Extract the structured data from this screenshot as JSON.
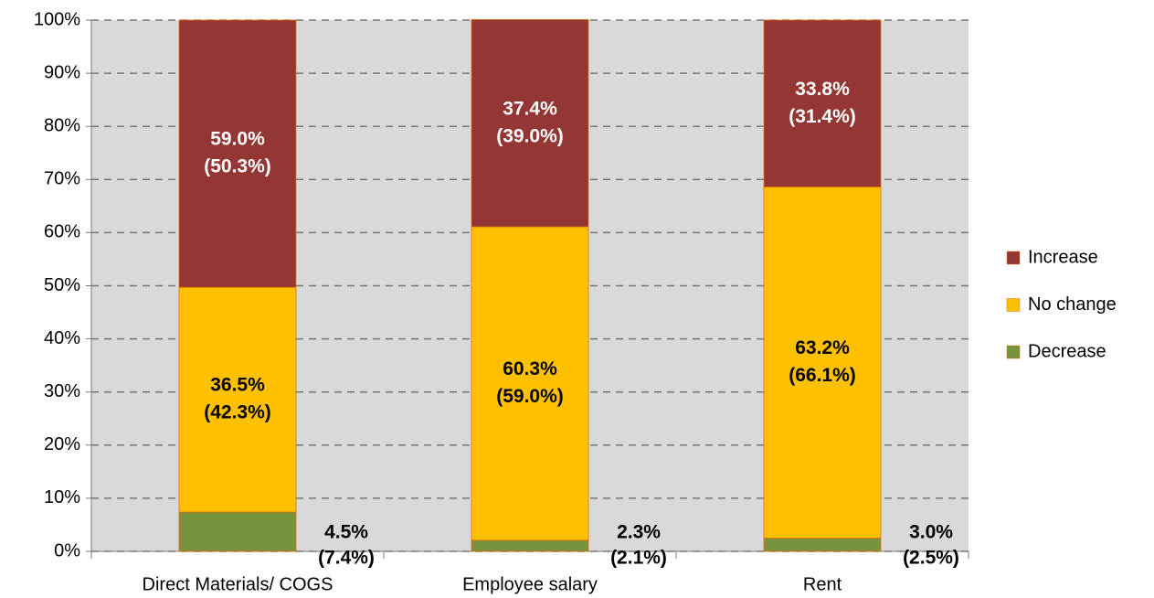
{
  "chart_data": {
    "type": "stacked_bar",
    "categories": [
      "Direct Materials/ COGS",
      "Employee salary",
      "Rent"
    ],
    "series": [
      {
        "name": "Decrease",
        "color": "#77933c",
        "values": [
          7.4,
          2.1,
          2.5
        ],
        "value_labels": [
          [
            "4.5%",
            "(7.4%)"
          ],
          [
            "2.3%",
            "(2.1%)"
          ],
          [
            "3.0%",
            "(2.5%)"
          ]
        ]
      },
      {
        "name": "No change",
        "color": "#ffc000",
        "values": [
          42.3,
          59.0,
          66.1
        ],
        "value_labels": [
          [
            "36.5%",
            "(42.3%)"
          ],
          [
            "60.3%",
            "(59.0%)"
          ],
          [
            "63.2%",
            "(66.1%)"
          ]
        ]
      },
      {
        "name": "Increase",
        "color": "#943634",
        "values": [
          50.3,
          39.0,
          31.4
        ],
        "value_labels": [
          [
            "59.0%",
            "(50.3%)"
          ],
          [
            "37.4%",
            "(39.0%)"
          ],
          [
            "33.8%",
            "(31.4%)"
          ]
        ]
      }
    ],
    "ylim": [
      0,
      100
    ],
    "yticks": [
      {
        "value": 0,
        "label": "0%"
      },
      {
        "value": 10,
        "label": "10%"
      },
      {
        "value": 20,
        "label": "20%"
      },
      {
        "value": 30,
        "label": "30%"
      },
      {
        "value": 40,
        "label": "40%"
      },
      {
        "value": 50,
        "label": "50%"
      },
      {
        "value": 60,
        "label": "60%"
      },
      {
        "value": 70,
        "label": "70%"
      },
      {
        "value": 80,
        "label": "80%"
      },
      {
        "value": 90,
        "label": "90%"
      },
      {
        "value": 100,
        "label": "100%"
      }
    ],
    "grid": true,
    "legend": "right"
  }
}
